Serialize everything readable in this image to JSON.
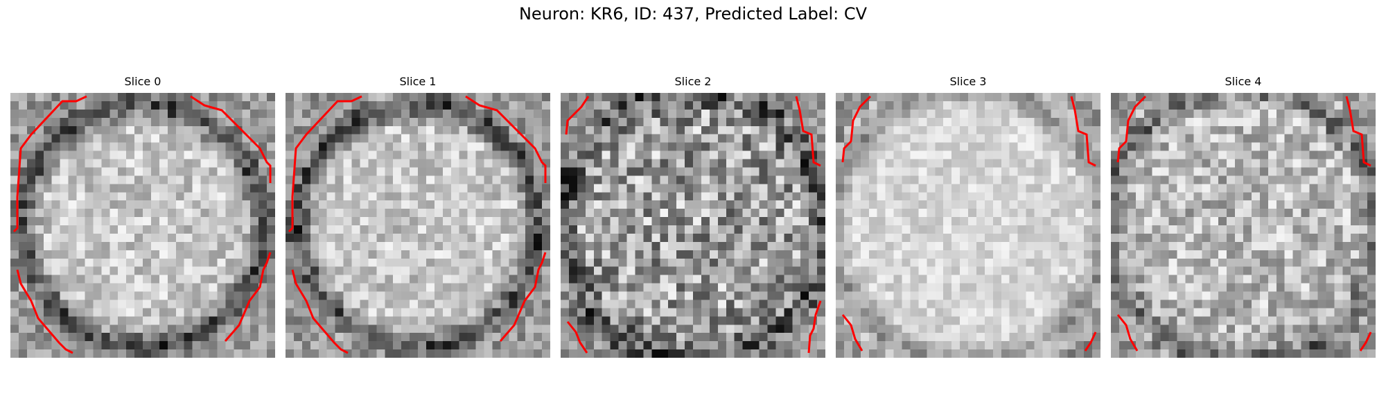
{
  "figure": {
    "title": "Neuron: KR6, ID: 437, Predicted Label: CV",
    "contour_color": "#ff0000",
    "colormap": "gray"
  },
  "slices": [
    {
      "title": "Slice 0",
      "ring": "full",
      "texture": "bright-smooth"
    },
    {
      "title": "Slice 1",
      "ring": "full",
      "texture": "bright-smooth"
    },
    {
      "title": "Slice 2",
      "ring": "corners",
      "texture": "mottled-dark"
    },
    {
      "title": "Slice 3",
      "ring": "corners-light",
      "texture": "bright-uniform"
    },
    {
      "title": "Slice 4",
      "ring": "corners-light",
      "texture": "mottled"
    }
  ]
}
